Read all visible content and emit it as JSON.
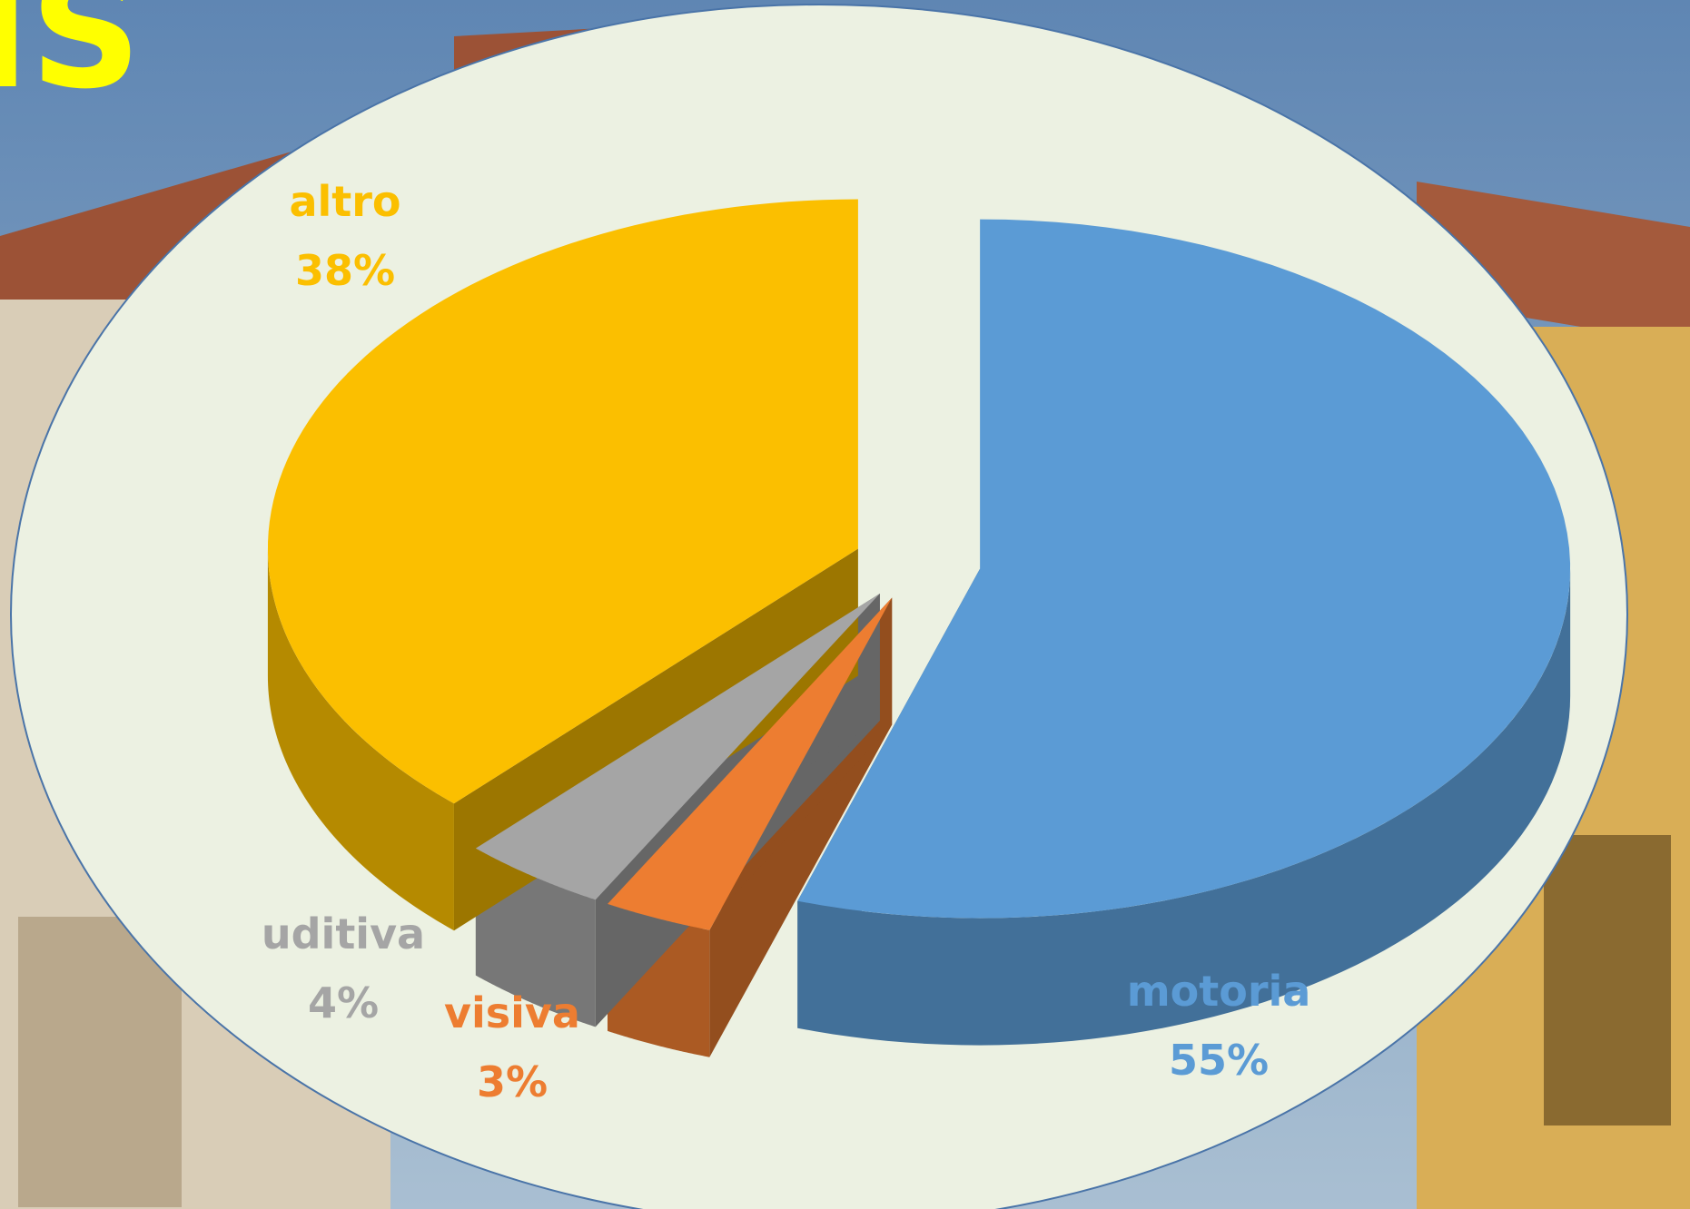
{
  "title": "IS",
  "chart_data": {
    "type": "pie3d",
    "categories": [
      "motoria",
      "visiva",
      "uditiva",
      "altro"
    ],
    "values": [
      55,
      3,
      4,
      38
    ],
    "value_labels": [
      "55%",
      "3%",
      "4%",
      "38%"
    ],
    "colors": [
      "#5b9bd5",
      "#ed7d31",
      "#a5a5a5",
      "#fbbf00"
    ],
    "label_colors": [
      "#5b9bd5",
      "#ed7d31",
      "#a5a5a5",
      "#fbbf00"
    ]
  }
}
